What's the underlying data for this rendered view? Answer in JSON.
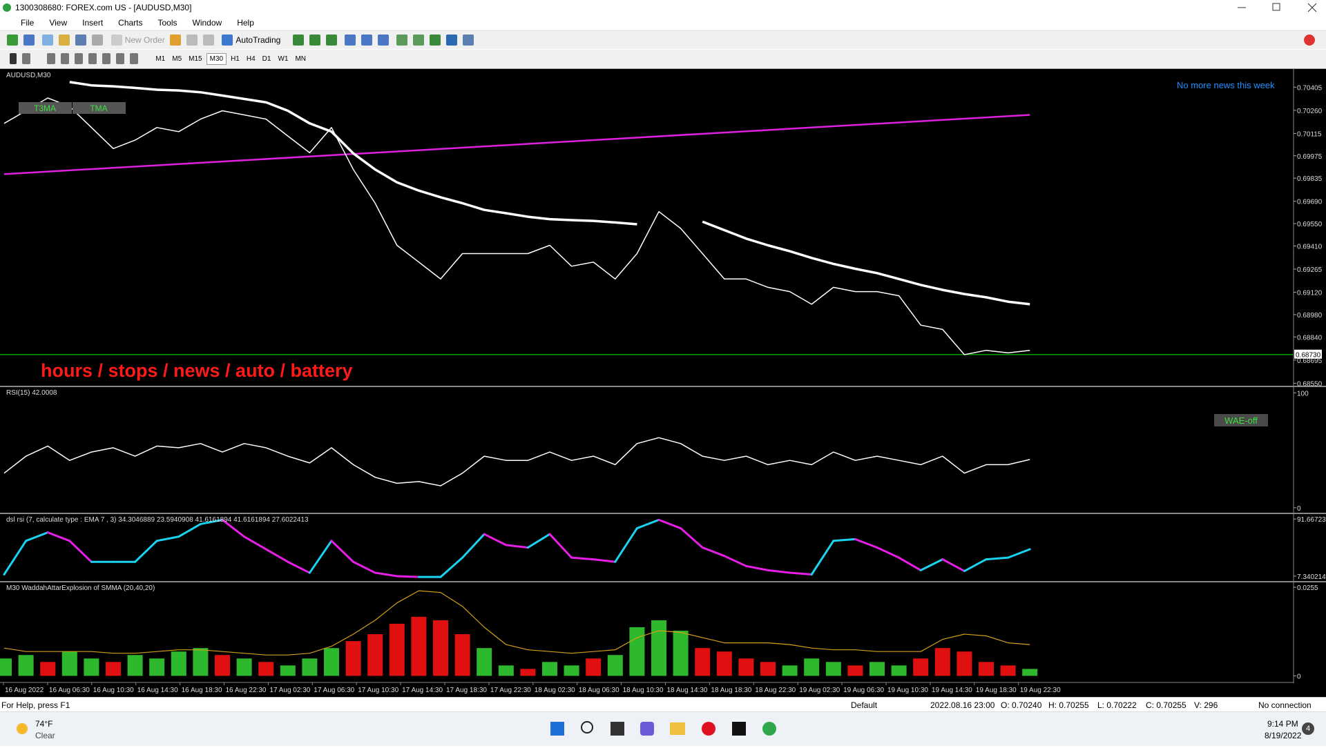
{
  "window": {
    "title": "1300308680: FOREX.com US - [AUDUSD,M30]",
    "menu": [
      "File",
      "View",
      "Insert",
      "Charts",
      "Tools",
      "Window",
      "Help"
    ],
    "toolbar": {
      "new_order": "New Order",
      "auto_trading": "AutoTrading",
      "timeframes": [
        "M1",
        "M5",
        "M15",
        "M30",
        "H1",
        "H4",
        "D1",
        "W1",
        "MN"
      ]
    }
  },
  "time_labels": [
    "16 Aug 2022",
    "16 Aug 06:30",
    "16 Aug 10:30",
    "16 Aug 14:30",
    "16 Aug 18:30",
    "16 Aug 22:30",
    "17 Aug 02:30",
    "17 Aug 06:30",
    "17 Aug 10:30",
    "17 Aug 14:30",
    "17 Aug 18:30",
    "17 Aug 22:30",
    "18 Aug 02:30",
    "18 Aug 06:30",
    "18 Aug 10:30",
    "18 Aug 14:30",
    "18 Aug 18:30",
    "18 Aug 22:30",
    "19 Aug 02:30",
    "19 Aug 06:30",
    "19 Aug 10:30",
    "19 Aug 14:30",
    "19 Aug 18:30",
    "19 Aug 22:30"
  ],
  "chart_data": [
    {
      "type": "line",
      "title": "AUDUSD,M30",
      "ylim": [
        0.6853,
        0.7051
      ],
      "yticks": [
        {
          "value": 0.70405,
          "label": "0.70405"
        },
        {
          "value": 0.7026,
          "label": "0.70260"
        },
        {
          "value": 0.70115,
          "label": "0.70115"
        },
        {
          "value": 0.69975,
          "label": "0.69975"
        },
        {
          "value": 0.69835,
          "label": "0.69835"
        },
        {
          "value": 0.6969,
          "label": "0.69690"
        },
        {
          "value": 0.6955,
          "label": "0.69550"
        },
        {
          "value": 0.6941,
          "label": "0.69410"
        },
        {
          "value": 0.69265,
          "label": "0.69265"
        },
        {
          "value": 0.6912,
          "label": "0.69120"
        },
        {
          "value": 0.6898,
          "label": "0.68980"
        },
        {
          "value": 0.6884,
          "label": "0.68840"
        },
        {
          "value": 0.68695,
          "label": "0.68695"
        },
        {
          "value": 0.6855,
          "label": "0.68550"
        }
      ],
      "current_price": {
        "value": 0.6873,
        "label": "0.68730",
        "color": "#00a000"
      },
      "series": [
        {
          "color": "#ffffff",
          "width": 1.5,
          "values": [
            0.70178,
            0.70257,
            0.70337,
            0.70284,
            0.70152,
            0.7002,
            0.70073,
            0.70152,
            0.70126,
            0.70205,
            0.70257,
            0.70231,
            0.70205,
            0.70099,
            0.69994,
            0.70152,
            0.69889,
            0.69678,
            0.69414,
            0.69309,
            0.69203,
            0.69362,
            0.69362,
            0.69362,
            0.69362,
            0.69414,
            0.69283,
            0.69309,
            0.69203,
            0.69362,
            0.69625,
            0.6952,
            0.69362,
            0.69203,
            0.69203,
            0.69151,
            0.69124,
            0.69045,
            0.69151,
            0.69124,
            0.69124,
            0.69098,
            0.68914,
            0.68887,
            0.68729,
            0.68756,
            0.6874,
            0.68756
          ]
        },
        {
          "color": "#ffffff",
          "width": 3.5,
          "values": [
            null,
            null,
            null,
            0.70437,
            0.70416,
            0.7041,
            0.704,
            0.70389,
            0.70384,
            0.70373,
            0.70352,
            0.70331,
            0.7031,
            0.70257,
            0.70178,
            0.70126,
            0.6999,
            0.69889,
            0.69809,
            0.69757,
            0.69715,
            0.69678,
            0.69636,
            0.69615,
            0.69593,
            0.69578,
            0.69572,
            0.69567,
            0.69557,
            0.69546,
            null,
            null,
            0.69562,
            0.69509,
            0.69456,
            0.69414,
            0.69377,
            0.69335,
            0.69298,
            0.69267,
            0.6924,
            0.69203,
            0.69166,
            0.69135,
            0.69109,
            0.69088,
            0.69061,
            0.69045
          ]
        }
      ],
      "trendline": {
        "color": "#e020e0",
        "values": [
          0.6986,
          0.70231
        ]
      },
      "buttons": [
        "T3MA",
        "TMA"
      ],
      "news": "No more news this week",
      "banner": "hours / stops / news / auto / battery"
    },
    {
      "type": "line",
      "title": "RSI(15) 42.0008",
      "ylim": [
        -3.7,
        104.4
      ],
      "yticks": [
        0,
        100
      ],
      "series": [
        {
          "color": "#ffffff",
          "width": 1.5,
          "values": [
            30.1,
            44.9,
            53.7,
            41.2,
            48.5,
            52.2,
            44.9,
            53.7,
            52.2,
            55.9,
            48.5,
            55.9,
            52.2,
            44.9,
            39.0,
            52.2,
            37.5,
            26.5,
            21.3,
            22.8,
            19.1,
            30.1,
            44.9,
            41.2,
            41.2,
            48.5,
            41.2,
            44.9,
            37.5,
            55.9,
            61.0,
            55.9,
            44.9,
            41.2,
            44.9,
            37.5,
            41.2,
            37.5,
            48.5,
            41.2,
            44.9,
            41.2,
            37.5,
            44.9,
            30.1,
            37.5,
            37.5,
            42.0
          ]
        }
      ],
      "button": "WAE-off"
    },
    {
      "type": "line",
      "title": "dsl rsi (7, calculate type : EMA  7 , 3) 34.3046889 23.5940908 41.6161894 41.6161894 27.6022413",
      "ylim": [
        1.14,
        97.9
      ],
      "yticks": [
        {
          "value": 91.66723,
          "label": "91.667230"
        },
        {
          "value": 7.340214,
          "label": "7.340214"
        }
      ],
      "rise_color": "#19d3f0",
      "fall_color": "#e61ee6",
      "series": [
        {
          "width": 3,
          "values": [
            9.8,
            59.4,
            71.8,
            59.4,
            28.4,
            28.4,
            28.4,
            59.4,
            65.6,
            84.2,
            90.4,
            65.6,
            47.0,
            28.4,
            12.3,
            59.4,
            28.4,
            12.3,
            7.3,
            6.1,
            6.1,
            34.6,
            69.3,
            53.2,
            49.5,
            69.3,
            34.6,
            32.1,
            28.4,
            78.0,
            90.4,
            78.0,
            49.5,
            37.1,
            22.2,
            16.0,
            12.3,
            9.8,
            59.4,
            61.9,
            49.5,
            34.6,
            16.0,
            32.1,
            14.8,
            32.1,
            34.6,
            47.0
          ]
        }
      ]
    },
    {
      "type": "bar",
      "title": "M30 WaddahAttarExplosion of SMMA (20,40,20)",
      "ylim": [
        -0.0015,
        0.0267
      ],
      "yticks": [
        {
          "value": 0.0255,
          "label": "0.0255"
        },
        0
      ],
      "values": [
        0.005,
        0.006,
        0.004,
        0.007,
        0.005,
        0.004,
        0.006,
        0.005,
        0.007,
        0.008,
        0.006,
        0.005,
        0.004,
        0.003,
        0.005,
        0.008,
        0.01,
        0.012,
        0.015,
        0.017,
        0.016,
        0.012,
        0.008,
        0.003,
        0.002,
        0.004,
        0.003,
        0.005,
        0.006,
        0.014,
        0.016,
        0.013,
        0.008,
        0.007,
        0.005,
        0.004,
        0.003,
        0.005,
        0.004,
        0.003,
        0.004,
        0.003,
        0.005,
        0.008,
        0.007,
        0.004,
        0.003,
        0.002
      ],
      "bar_colors": [
        "#2db82d",
        "#2db82d",
        "#e01010",
        "#2db82d",
        "#2db82d",
        "#e01010",
        "#2db82d",
        "#2db82d",
        "#2db82d",
        "#2db82d",
        "#e01010",
        "#2db82d",
        "#e01010",
        "#2db82d",
        "#2db82d",
        "#2db82d",
        "#e01010",
        "#e01010",
        "#e01010",
        "#e01010",
        "#e01010",
        "#e01010",
        "#2db82d",
        "#2db82d",
        "#e01010",
        "#2db82d",
        "#2db82d",
        "#e01010",
        "#2db82d",
        "#2db82d",
        "#2db82d",
        "#2db82d",
        "#e01010",
        "#e01010",
        "#e01010",
        "#e01010",
        "#2db82d",
        "#2db82d",
        "#2db82d",
        "#e01010",
        "#2db82d",
        "#2db82d",
        "#e01010",
        "#e01010",
        "#e01010",
        "#e01010",
        "#e01010",
        "#2db82d"
      ],
      "series": [
        {
          "color": "#d4a017",
          "width": 1.2,
          "values": [
            0.008,
            0.007,
            0.007,
            0.007,
            0.007,
            0.0065,
            0.0065,
            0.007,
            0.0075,
            0.0075,
            0.007,
            0.0065,
            0.006,
            0.006,
            0.0065,
            0.0085,
            0.012,
            0.016,
            0.021,
            0.0245,
            0.024,
            0.02,
            0.014,
            0.009,
            0.0075,
            0.007,
            0.0065,
            0.007,
            0.0075,
            0.011,
            0.013,
            0.0125,
            0.011,
            0.0095,
            0.0095,
            0.0095,
            0.009,
            0.008,
            0.0075,
            0.0075,
            0.007,
            0.007,
            0.007,
            0.0105,
            0.012,
            0.0115,
            0.0095,
            0.009
          ]
        }
      ]
    }
  ],
  "status_bar": {
    "help": "For Help, press F1",
    "profile": "Default",
    "time": "2022.08.16 23:00",
    "open": "O: 0.70240",
    "high": "H: 0.70255",
    "low": "L: 0.70222",
    "close": "C: 0.70255",
    "volume": "V: 296",
    "connection": "No connection"
  },
  "taskbar": {
    "temperature": "74°F",
    "weather": "Clear",
    "time": "9:14 PM",
    "date": "8/19/2022",
    "badge": "4"
  }
}
